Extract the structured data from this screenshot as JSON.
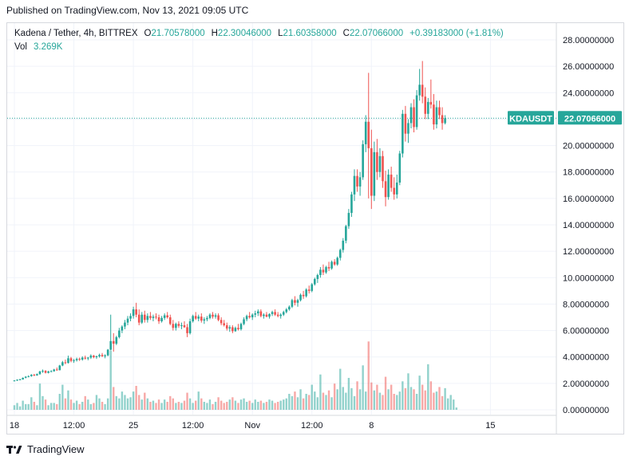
{
  "header": {
    "published": "Published on TradingView.com, Nov 13, 2021 09:05 UTC"
  },
  "legend": {
    "title": "Kadena / Tether, 4h, BITTREX",
    "o_label": "O",
    "o_value": "21.70578000",
    "h_label": "H",
    "h_value": "22.30046000",
    "l_label": "L",
    "l_value": "21.60358000",
    "c_label": "C",
    "c_value": "22.07066000",
    "change": "+0.39183000 (+1.81%)",
    "vol_label": "Vol",
    "vol_value": "3.269K"
  },
  "footer": {
    "brand": "TradingView"
  },
  "price_tag": {
    "symbol": "KDAUSDT",
    "value": "22.07066000"
  },
  "colors": {
    "up": "#26a69a",
    "down": "#ef5350",
    "up_vol": "#26a69a",
    "down_vol": "#ef5350",
    "grid": "#f0f3fa"
  },
  "chart_data": {
    "type": "candlestick",
    "title": "Kadena / Tether, 4h, BITTREX",
    "ylim": [
      0,
      28
    ],
    "y_ticks": [
      "0.00000000",
      "2.00000000",
      "4.00000000",
      "6.00000000",
      "8.00000000",
      "10.00000000",
      "12.00000000",
      "14.00000000",
      "16.00000000",
      "18.00000000",
      "20.00000000",
      "22.00000000",
      "24.00000000",
      "26.00000000",
      "28.00000000"
    ],
    "x_tick_labels": [
      "18",
      "12:00",
      "25",
      "12:00",
      "Nov",
      "12:00",
      "8",
      "15"
    ],
    "x_tick_bar_index": [
      0,
      21,
      42,
      63,
      84,
      105,
      126,
      168
    ],
    "grid": true,
    "last_close": 22.07066,
    "candles": [
      [
        2.2,
        2.25,
        2.15,
        2.22
      ],
      [
        2.22,
        2.3,
        2.18,
        2.28
      ],
      [
        2.28,
        2.35,
        2.25,
        2.3
      ],
      [
        2.3,
        2.45,
        2.28,
        2.42
      ],
      [
        2.42,
        2.55,
        2.38,
        2.5
      ],
      [
        2.5,
        2.6,
        2.45,
        2.55
      ],
      [
        2.55,
        2.7,
        2.5,
        2.65
      ],
      [
        2.65,
        2.72,
        2.55,
        2.6
      ],
      [
        2.6,
        2.75,
        2.58,
        2.7
      ],
      [
        2.7,
        2.95,
        2.65,
        2.9
      ],
      [
        2.9,
        3.05,
        2.8,
        2.95
      ],
      [
        2.95,
        3.0,
        2.75,
        2.8
      ],
      [
        2.8,
        2.95,
        2.75,
        2.9
      ],
      [
        2.9,
        3.0,
        2.85,
        2.92
      ],
      [
        2.92,
        3.1,
        2.88,
        3.05
      ],
      [
        3.05,
        3.2,
        2.95,
        3.0
      ],
      [
        3.0,
        3.4,
        2.98,
        3.35
      ],
      [
        3.35,
        3.7,
        3.3,
        3.6
      ],
      [
        3.6,
        3.8,
        3.45,
        3.55
      ],
      [
        3.55,
        4.1,
        3.5,
        3.9
      ],
      [
        3.9,
        4.0,
        3.6,
        3.7
      ],
      [
        3.7,
        3.85,
        3.55,
        3.75
      ],
      [
        3.75,
        3.95,
        3.65,
        3.85
      ],
      [
        3.85,
        3.95,
        3.7,
        3.8
      ],
      [
        3.8,
        4.05,
        3.72,
        3.95
      ],
      [
        3.95,
        4.1,
        3.8,
        3.88
      ],
      [
        3.88,
        4.0,
        3.75,
        3.95
      ],
      [
        3.95,
        4.2,
        3.85,
        4.1
      ],
      [
        4.1,
        4.15,
        3.9,
        3.98
      ],
      [
        3.98,
        4.1,
        3.85,
        4.05
      ],
      [
        4.05,
        4.25,
        3.95,
        4.15
      ],
      [
        4.15,
        4.3,
        4.0,
        4.05
      ],
      [
        4.05,
        4.2,
        3.9,
        4.12
      ],
      [
        4.12,
        4.6,
        4.05,
        4.55
      ],
      [
        4.55,
        7.2,
        4.5,
        5.2
      ],
      [
        5.2,
        5.8,
        4.4,
        5.0
      ],
      [
        5.0,
        5.6,
        4.9,
        5.5
      ],
      [
        5.5,
        6.2,
        5.4,
        6.0
      ],
      [
        6.0,
        6.4,
        5.8,
        6.3
      ],
      [
        6.3,
        6.8,
        6.1,
        6.6
      ],
      [
        6.6,
        7.1,
        6.4,
        6.9
      ],
      [
        6.9,
        7.3,
        6.7,
        7.1
      ],
      [
        7.1,
        7.8,
        6.9,
        7.6
      ],
      [
        7.6,
        8.1,
        7.0,
        7.2
      ],
      [
        7.2,
        7.6,
        6.4,
        6.6
      ],
      [
        6.6,
        7.4,
        6.5,
        7.2
      ],
      [
        7.2,
        7.5,
        6.6,
        6.8
      ],
      [
        6.8,
        7.3,
        6.6,
        7.1
      ],
      [
        7.1,
        7.4,
        6.8,
        6.95
      ],
      [
        6.95,
        7.2,
        6.7,
        7.05
      ],
      [
        7.05,
        7.3,
        6.85,
        7.0
      ],
      [
        7.0,
        7.2,
        6.5,
        6.7
      ],
      [
        6.7,
        7.1,
        6.6,
        6.95
      ],
      [
        6.95,
        7.3,
        6.8,
        7.15
      ],
      [
        7.15,
        7.4,
        6.9,
        7.0
      ],
      [
        7.0,
        7.2,
        6.4,
        6.5
      ],
      [
        6.5,
        6.8,
        6.0,
        6.2
      ],
      [
        6.2,
        6.6,
        6.0,
        6.5
      ],
      [
        6.5,
        6.7,
        6.2,
        6.35
      ],
      [
        6.35,
        6.6,
        6.1,
        6.4
      ],
      [
        6.4,
        6.7,
        6.2,
        6.25
      ],
      [
        6.25,
        6.5,
        5.5,
        5.8
      ],
      [
        5.8,
        6.9,
        5.7,
        6.7
      ],
      [
        6.7,
        7.2,
        6.6,
        7.1
      ],
      [
        7.1,
        7.4,
        6.8,
        6.9
      ],
      [
        6.9,
        7.2,
        6.7,
        7.05
      ],
      [
        7.05,
        7.3,
        6.6,
        6.75
      ],
      [
        6.75,
        7.0,
        6.5,
        6.85
      ],
      [
        6.85,
        7.1,
        6.7,
        6.95
      ],
      [
        6.95,
        7.3,
        6.85,
        7.2
      ],
      [
        7.2,
        7.4,
        6.9,
        7.05
      ],
      [
        7.05,
        7.3,
        6.9,
        7.15
      ],
      [
        7.15,
        7.3,
        6.7,
        6.8
      ],
      [
        6.8,
        7.0,
        6.4,
        6.55
      ],
      [
        6.55,
        6.8,
        6.3,
        6.4
      ],
      [
        6.4,
        6.6,
        6.0,
        6.15
      ],
      [
        6.15,
        6.4,
        5.9,
        6.25
      ],
      [
        6.25,
        6.4,
        5.8,
        5.95
      ],
      [
        5.95,
        6.3,
        5.9,
        6.2
      ],
      [
        6.2,
        6.5,
        6.0,
        6.1
      ],
      [
        6.1,
        6.6,
        6.0,
        6.5
      ],
      [
        6.5,
        7.0,
        6.4,
        6.85
      ],
      [
        6.85,
        7.2,
        6.7,
        7.1
      ],
      [
        7.1,
        7.4,
        6.9,
        7.0
      ],
      [
        7.0,
        7.3,
        6.8,
        7.2
      ],
      [
        7.2,
        7.5,
        7.0,
        7.3
      ],
      [
        7.3,
        7.6,
        7.1,
        7.45
      ],
      [
        7.45,
        7.6,
        7.0,
        7.1
      ],
      [
        7.1,
        7.3,
        6.9,
        7.2
      ],
      [
        7.2,
        7.4,
        7.0,
        7.05
      ],
      [
        7.05,
        7.3,
        6.9,
        7.25
      ],
      [
        7.25,
        7.5,
        7.1,
        7.4
      ],
      [
        7.4,
        7.6,
        7.1,
        7.2
      ],
      [
        7.2,
        7.4,
        7.0,
        7.1
      ],
      [
        7.1,
        7.3,
        6.9,
        7.2
      ],
      [
        7.2,
        7.5,
        7.1,
        7.4
      ],
      [
        7.4,
        7.7,
        7.3,
        7.6
      ],
      [
        7.6,
        7.9,
        7.5,
        7.8
      ],
      [
        7.8,
        8.4,
        7.7,
        8.3
      ],
      [
        8.3,
        8.6,
        7.9,
        8.1
      ],
      [
        8.1,
        8.4,
        7.8,
        8.3
      ],
      [
        8.3,
        8.8,
        8.2,
        8.7
      ],
      [
        8.7,
        9.0,
        8.4,
        8.6
      ],
      [
        8.6,
        9.2,
        8.5,
        9.1
      ],
      [
        9.1,
        9.4,
        8.8,
        9.0
      ],
      [
        9.0,
        9.6,
        8.9,
        9.5
      ],
      [
        9.5,
        10.0,
        9.4,
        9.9
      ],
      [
        9.9,
        10.3,
        9.6,
        10.2
      ],
      [
        10.2,
        10.8,
        10.0,
        10.6
      ],
      [
        10.6,
        11.0,
        10.2,
        10.4
      ],
      [
        10.4,
        10.9,
        10.3,
        10.8
      ],
      [
        10.8,
        11.2,
        10.5,
        10.7
      ],
      [
        10.7,
        11.3,
        10.6,
        11.2
      ],
      [
        11.2,
        11.4,
        10.9,
        11.0
      ],
      [
        11.0,
        11.6,
        10.9,
        11.5
      ],
      [
        11.5,
        12.2,
        11.3,
        12.1
      ],
      [
        12.1,
        13.0,
        11.9,
        12.8
      ],
      [
        12.8,
        14.0,
        12.6,
        13.9
      ],
      [
        13.9,
        15.2,
        13.7,
        14.9
      ],
      [
        14.9,
        16.5,
        14.6,
        16.3
      ],
      [
        16.3,
        18.2,
        15.8,
        17.7
      ],
      [
        17.7,
        18.2,
        16.5,
        16.9
      ],
      [
        16.9,
        18.0,
        16.2,
        17.6
      ],
      [
        17.6,
        20.4,
        17.4,
        20.1
      ],
      [
        20.1,
        22.3,
        19.5,
        21.8
      ],
      [
        21.8,
        25.5,
        16.0,
        19.8
      ],
      [
        19.8,
        21.2,
        15.2,
        16.2
      ],
      [
        16.2,
        20.3,
        15.8,
        19.5
      ],
      [
        19.5,
        20.5,
        17.4,
        18.0
      ],
      [
        18.0,
        19.8,
        17.6,
        19.2
      ],
      [
        19.2,
        19.6,
        16.8,
        17.3
      ],
      [
        17.3,
        18.1,
        15.4,
        16.1
      ],
      [
        16.1,
        18.2,
        15.9,
        17.8
      ],
      [
        17.8,
        18.4,
        16.5,
        16.8
      ],
      [
        16.8,
        17.6,
        15.9,
        16.3
      ],
      [
        16.3,
        17.8,
        16.0,
        17.2
      ],
      [
        17.2,
        19.6,
        17.0,
        19.4
      ],
      [
        19.4,
        22.7,
        19.1,
        22.4
      ],
      [
        22.4,
        23.0,
        20.3,
        20.9
      ],
      [
        20.9,
        22.0,
        20.2,
        21.7
      ],
      [
        21.7,
        23.2,
        21.3,
        22.9
      ],
      [
        22.9,
        23.5,
        21.0,
        21.4
      ],
      [
        21.4,
        24.2,
        21.2,
        23.8
      ],
      [
        23.8,
        25.8,
        23.4,
        24.6
      ],
      [
        24.6,
        26.4,
        23.2,
        23.7
      ],
      [
        23.7,
        24.4,
        22.0,
        22.4
      ],
      [
        22.4,
        23.6,
        22.0,
        23.3
      ],
      [
        23.3,
        25.0,
        22.8,
        23.1
      ],
      [
        23.1,
        23.9,
        21.2,
        21.6
      ],
      [
        21.6,
        23.4,
        21.3,
        22.9
      ],
      [
        22.9,
        23.4,
        22.0,
        22.3
      ],
      [
        22.3,
        22.9,
        21.2,
        21.7
      ],
      [
        21.7,
        22.3,
        21.6,
        22.07
      ]
    ],
    "volume": [
      0.4,
      0.6,
      0.3,
      0.8,
      0.5,
      0.5,
      1.1,
      0.7,
      0.4,
      2.3,
      1.2,
      0.9,
      0.4,
      0.6,
      0.6,
      0.5,
      1.4,
      2.2,
      1.0,
      1.7,
      0.9,
      0.6,
      0.8,
      0.5,
      0.7,
      1.2,
      0.9,
      0.5,
      0.6,
      1.3,
      1.0,
      0.7,
      0.5,
      1.0,
      5.2,
      2.0,
      1.2,
      1.0,
      1.6,
      1.3,
      1.0,
      1.1,
      1.6,
      2.1,
      1.3,
      0.9,
      1.5,
      1.0,
      0.7,
      0.8,
      0.6,
      0.9,
      0.6,
      0.9,
      0.7,
      1.2,
      1.0,
      0.6,
      0.7,
      0.6,
      0.8,
      1.5,
      1.0,
      0.6,
      0.8,
      1.6,
      1.0,
      0.7,
      0.6,
      0.9,
      0.5,
      0.7,
      1.1,
      0.8,
      0.6,
      0.7,
      0.9,
      1.1,
      0.8,
      0.6,
      0.9,
      1.0,
      0.7,
      0.8,
      0.6,
      0.9,
      0.7,
      0.8,
      0.6,
      0.7,
      0.9,
      0.8,
      0.6,
      0.7,
      0.8,
      0.9,
      1.0,
      1.4,
      1.2,
      1.6,
      1.1,
      1.8,
      1.0,
      1.4,
      1.3,
      2.2,
      1.6,
      1.1,
      3.1,
      1.5,
      1.3,
      1.7,
      1.1,
      2.3,
      1.8,
      3.6,
      2.0,
      1.5,
      2.8,
      1.9,
      1.2,
      2.5,
      1.8,
      3.9,
      1.6,
      6.0,
      2.4,
      1.7,
      2.2,
      1.5,
      1.3,
      2.9,
      1.8,
      2.2,
      1.4,
      1.3,
      1.6,
      2.5,
      1.9,
      3.2,
      2.0,
      1.8,
      1.4,
      3.0,
      2.2,
      1.7,
      4.0,
      2.5,
      1.5,
      1.6,
      2.0,
      1.2,
      1.9,
      1.0,
      1.3,
      0.9,
      0.2
    ]
  }
}
